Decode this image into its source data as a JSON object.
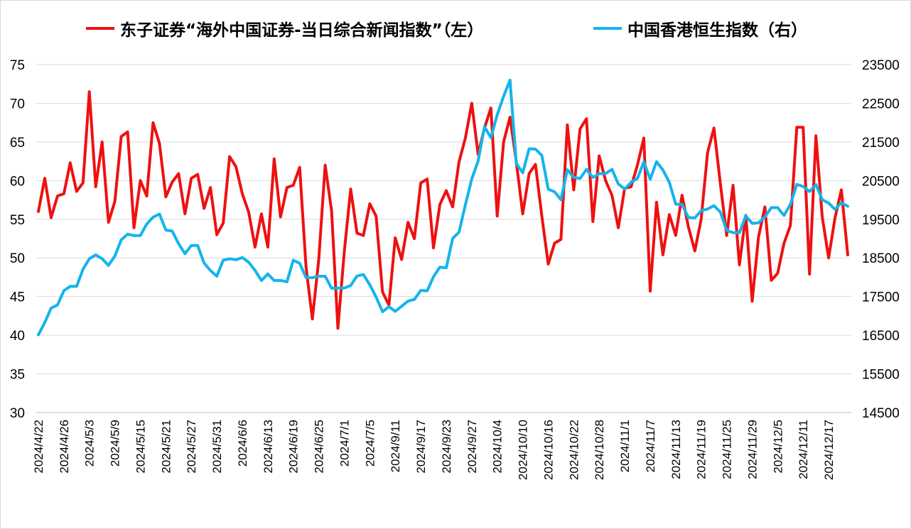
{
  "chart_data": {
    "type": "line",
    "legend_position": "top",
    "grid": true,
    "colors": {
      "left_series": "#ee1111",
      "right_series": "#14b4ec",
      "grid": "#d9d9d9"
    },
    "left_axis": {
      "min": 30,
      "max": 75,
      "ticks": [
        "30",
        "35",
        "40",
        "45",
        "50",
        "55",
        "60",
        "65",
        "70",
        "75"
      ]
    },
    "right_axis": {
      "min": 14500,
      "max": 23500,
      "ticks": [
        "14500",
        "15500",
        "16500",
        "17500",
        "18500",
        "19500",
        "20500",
        "21500",
        "22500",
        "23500"
      ]
    },
    "x_tick_labels": [
      "2024/4/22",
      "2024/4/26",
      "2024/5/3",
      "2024/5/9",
      "2024/5/15",
      "2024/5/21",
      "2024/5/27",
      "2024/5/31",
      "2024/6/6",
      "2024/6/13",
      "2024/6/19",
      "2024/6/25",
      "2024/7/1",
      "2024/7/5",
      "2024/9/11",
      "2024/9/17",
      "2024/9/23",
      "2024/9/27",
      "2024/10/4",
      "2024/10/10",
      "2024/10/16",
      "2024/10/22",
      "2024/10/28",
      "2024/11/1",
      "2024/11/7",
      "2024/11/13",
      "2024/11/19",
      "2024/11/25",
      "2024/11/29",
      "2024/12/5",
      "2024/12/11",
      "2024/12/17"
    ],
    "series": [
      {
        "name": "东子证券“海外中国证券-当日综合新闻指数”（左）",
        "axis": "left",
        "values": [
          56,
          60.3,
          55.2,
          58,
          58.3,
          62.3,
          58.6,
          59.7,
          71.5,
          59.2,
          65,
          54.6,
          57.3,
          65.7,
          66.3,
          53.9,
          60,
          58,
          67.5,
          64.8,
          57.9,
          59.8,
          60.9,
          55.7,
          60.3,
          60.8,
          56.4,
          59.1,
          53,
          54.5,
          63.1,
          61.8,
          58.3,
          55.9,
          51.4,
          55.7,
          51.4,
          62.8,
          55.3,
          59.1,
          59.4,
          61.7,
          48.8,
          42.1,
          49.8,
          62,
          56.1,
          40.9,
          50.8,
          58.9,
          53.2,
          52.9,
          57,
          55.4,
          45.6,
          43.9,
          52.6,
          49.8,
          54.6,
          52.5,
          59.7,
          60.2,
          51.3,
          56.9,
          58.7,
          56.6,
          62.4,
          65.5,
          70,
          63.4,
          66.8,
          69.4,
          55.4,
          65,
          68.2,
          62.4,
          55.7,
          60.9,
          62.1,
          55.4,
          49.2,
          51.9,
          52.4,
          67.2,
          58.8,
          66.7,
          68,
          54.7,
          63.2,
          60,
          58.1,
          53.9,
          59,
          59.2,
          62,
          65.5,
          45.7,
          57.2,
          50.4,
          55.6,
          52.9,
          58.1,
          54,
          50.9,
          55,
          63.6,
          66.8,
          59.7,
          52.9,
          59.4,
          49.1,
          55.5,
          44.4,
          52.7,
          56.6,
          47.1,
          48,
          51.9,
          54.2,
          66.9,
          66.9,
          47.9,
          65.8,
          55.3,
          50,
          55.2,
          58.8,
          50.4
        ]
      },
      {
        "name": "中国香港恒生指数（右）",
        "axis": "right",
        "values": [
          16511,
          16829,
          17201,
          17285,
          17651,
          17763,
          17763,
          18207,
          18480,
          18578,
          18478,
          18305,
          18549,
          18966,
          19115,
          19077,
          19077,
          19376,
          19552,
          19636,
          19220,
          19195,
          18867,
          18608,
          18821,
          18821,
          18366,
          18176,
          18026,
          18442,
          18479,
          18453,
          18509,
          18389,
          18177,
          17915,
          18085,
          17916,
          17916,
          17881,
          18440,
          18360,
          17988,
          17990,
          18027,
          18027,
          17717,
          17718,
          17719,
          17785,
          18032,
          18069,
          17806,
          17484,
          17108,
          17239,
          17118,
          17249,
          17383,
          17426,
          17660,
          17649,
          18010,
          18264,
          18244,
          19003,
          19164,
          19875,
          20544,
          21006,
          21889,
          21611,
          22201,
          22680,
          23100,
          20946,
          20700,
          21324,
          21314,
          21152,
          20278,
          20208,
          20006,
          20780,
          20585,
          20553,
          20790,
          20581,
          20679,
          20683,
          20793,
          20415,
          20282,
          20459,
          20553,
          20984,
          20535,
          20990,
          20774,
          20457,
          19890,
          19882,
          19544,
          19535,
          19722,
          19764,
          19852,
          19689,
          19213,
          19151,
          19151,
          19587,
          19393,
          19407,
          19560,
          19800,
          19800,
          19599,
          19888,
          20404,
          20348,
          20217,
          20396,
          20009,
          19918,
          19754,
          19925,
          19835
        ]
      }
    ]
  }
}
